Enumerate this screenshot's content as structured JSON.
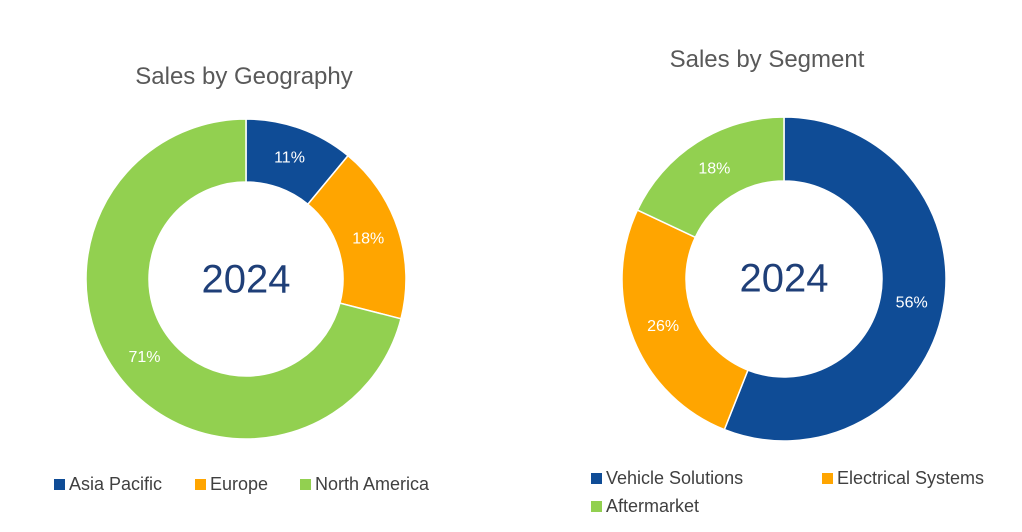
{
  "chart_data": [
    {
      "type": "pie",
      "title": "Sales by Geography",
      "center_label": "2024",
      "categories": [
        "Asia Pacific",
        "Europe",
        "North America"
      ],
      "values": [
        11,
        18,
        71
      ],
      "labels": [
        "11%",
        "18%",
        "71%"
      ],
      "colors": [
        "#0f4c96",
        "#ffa500",
        "#92d050"
      ],
      "legend_position": "bottom"
    },
    {
      "type": "pie",
      "title": "Sales by Segment",
      "center_label": "2024",
      "categories": [
        "Vehicle Solutions",
        "Electrical Systems",
        "Aftermarket"
      ],
      "values": [
        56,
        26,
        18
      ],
      "labels": [
        "56%",
        "26%",
        "18%"
      ],
      "colors": [
        "#0f4c96",
        "#ffa500",
        "#92d050"
      ],
      "legend_position": "bottom"
    }
  ]
}
